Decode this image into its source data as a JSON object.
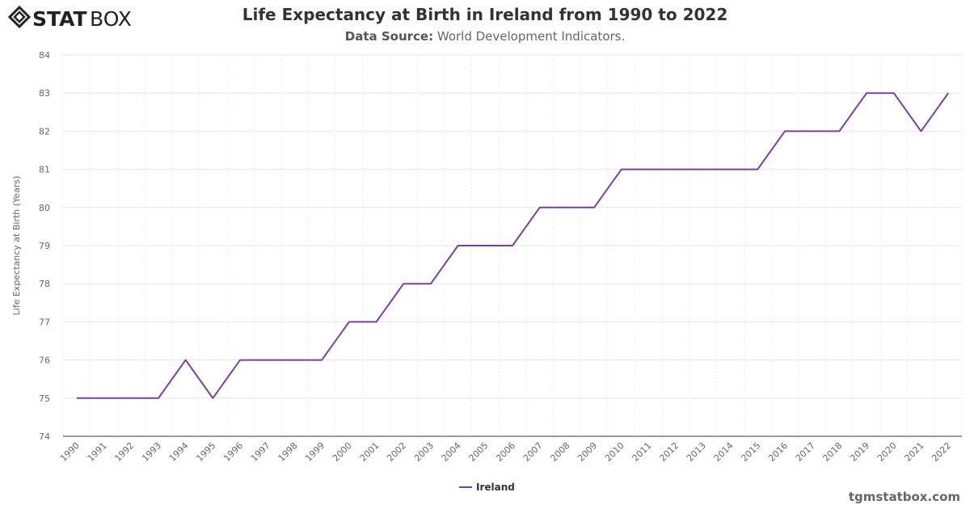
{
  "brand": {
    "logo_text": "STATBOX"
  },
  "header": {
    "title": "Life Expectancy at Birth in Ireland from 1990 to 2022",
    "source_label": "Data Source:",
    "source_value": "World Development Indicators."
  },
  "footer": {
    "site": "tgmstatbox.com"
  },
  "colors": {
    "series": "#7b3f98",
    "grid": "#e6e6e6",
    "axis": "#333333"
  },
  "chart_data": {
    "type": "line",
    "title": "Life Expectancy at Birth in Ireland from 1990 to 2022",
    "ylabel": "Life Expectancy at Birth (Years)",
    "xlabel": "",
    "ylim": [
      74,
      84
    ],
    "yticks": [
      74,
      75,
      76,
      77,
      78,
      79,
      80,
      81,
      82,
      83,
      84
    ],
    "grid": true,
    "legend": "bottom-center",
    "categories": [
      "1990",
      "1991",
      "1992",
      "1993",
      "1994",
      "1995",
      "1996",
      "1997",
      "1998",
      "1999",
      "2000",
      "2001",
      "2002",
      "2003",
      "2004",
      "2005",
      "2006",
      "2007",
      "2008",
      "2009",
      "2010",
      "2011",
      "2012",
      "2013",
      "2014",
      "2015",
      "2016",
      "2017",
      "2018",
      "2019",
      "2020",
      "2021",
      "2022"
    ],
    "series": [
      {
        "name": "Ireland",
        "values": [
          75,
          75,
          75,
          75,
          76,
          75,
          76,
          76,
          76,
          76,
          77,
          77,
          78,
          78,
          79,
          79,
          79,
          80,
          80,
          80,
          81,
          81,
          81,
          81,
          81,
          81,
          82,
          82,
          82,
          83,
          83,
          82,
          83
        ]
      }
    ]
  }
}
